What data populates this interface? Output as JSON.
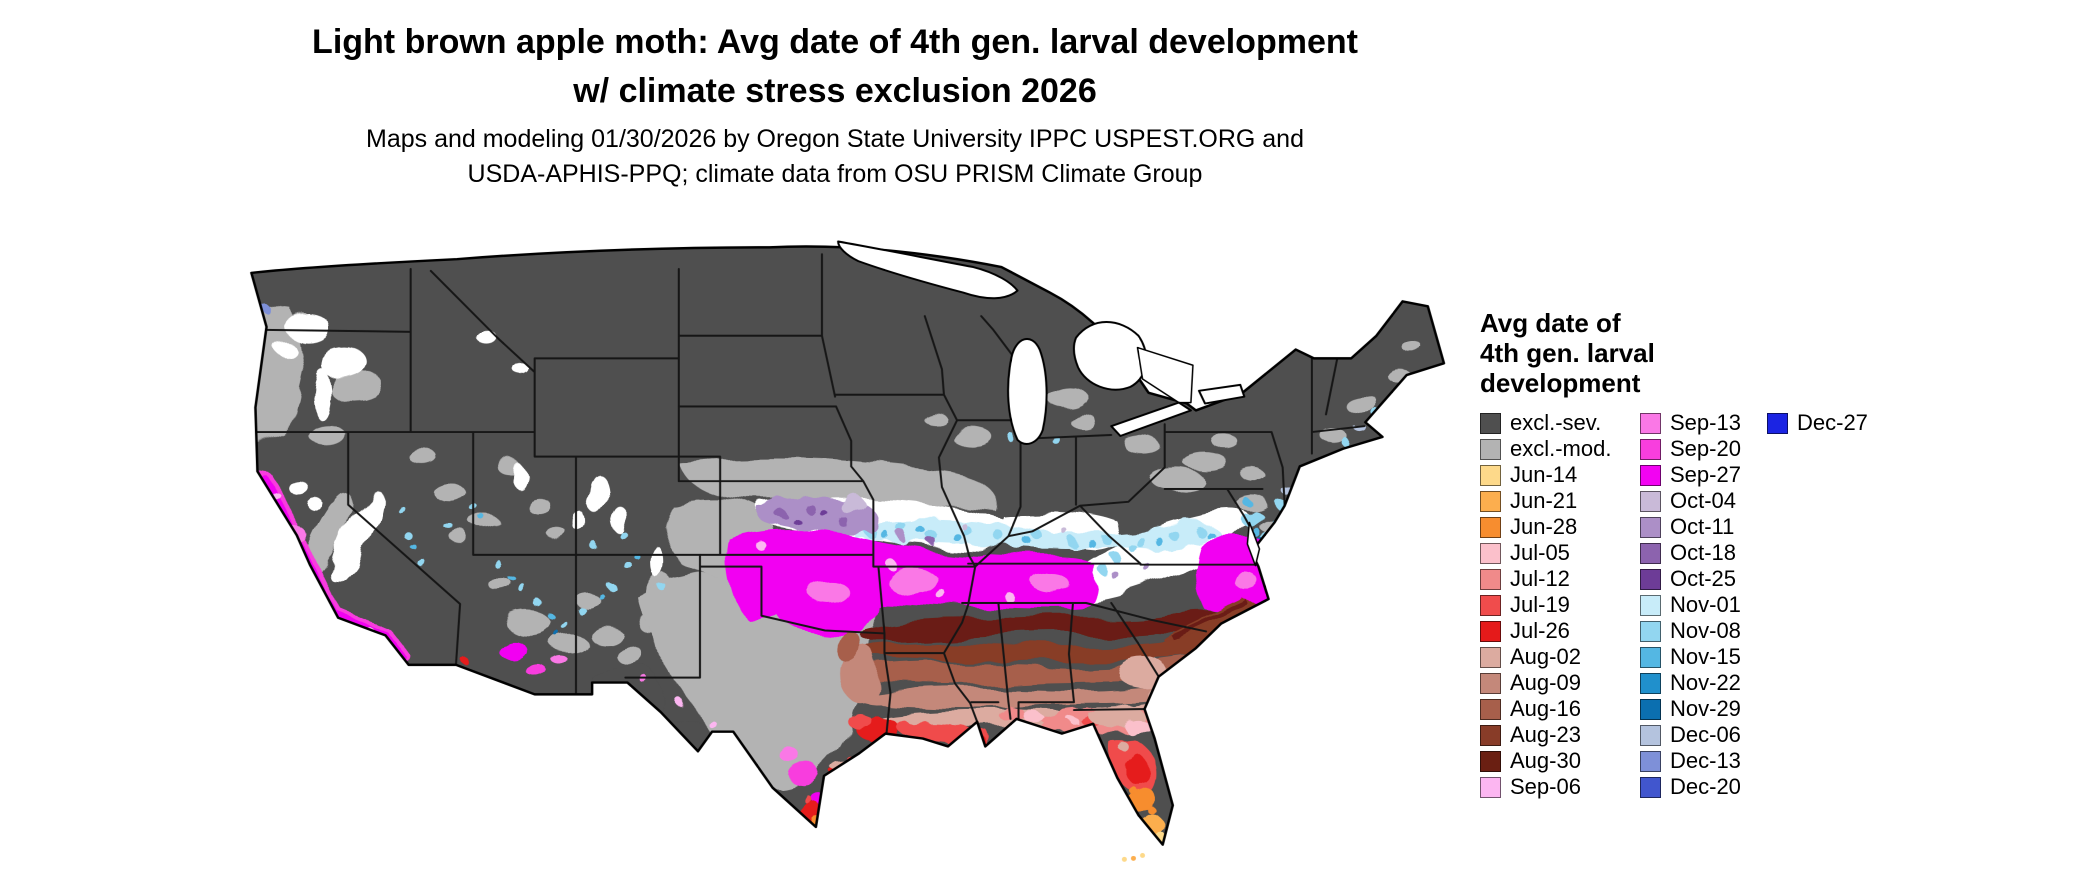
{
  "title": {
    "line1": "Light brown apple moth: Avg date of 4th gen. larval development",
    "line2": "w/ climate stress exclusion 2026"
  },
  "subtitle": {
    "line1": "Maps and modeling 01/30/2026 by Oregon State University IPPC USPEST.ORG and",
    "line2": "USDA-APHIS-PPQ; climate data from OSU PRISM Climate Group"
  },
  "legend": {
    "title": "Avg date of\n4th gen. larval\ndevelopment",
    "column1": [
      {
        "label": "excl.-sev.",
        "color": "#4f4f4f"
      },
      {
        "label": "excl.-mod.",
        "color": "#b3b3b3"
      },
      {
        "label": "Jun-14",
        "color": "#fdd98a"
      },
      {
        "label": "Jun-21",
        "color": "#fcae4e"
      },
      {
        "label": "Jun-28",
        "color": "#f78d2f"
      },
      {
        "label": "Jul-05",
        "color": "#fbc0cb"
      },
      {
        "label": "Jul-12",
        "color": "#f08a8a"
      },
      {
        "label": "Jul-19",
        "color": "#f04c4c"
      },
      {
        "label": "Jul-26",
        "color": "#e51a1a"
      },
      {
        "label": "Aug-02",
        "color": "#dcaba0"
      },
      {
        "label": "Aug-09",
        "color": "#c4887a"
      },
      {
        "label": "Aug-16",
        "color": "#a75f4b"
      },
      {
        "label": "Aug-23",
        "color": "#883c28"
      },
      {
        "label": "Aug-30",
        "color": "#6a1f12"
      },
      {
        "label": "Sep-06",
        "color": "#fcb6f1"
      }
    ],
    "column2": [
      {
        "label": "Sep-13",
        "color": "#fa78e6"
      },
      {
        "label": "Sep-20",
        "color": "#f83ede"
      },
      {
        "label": "Sep-27",
        "color": "#f203f2"
      },
      {
        "label": "Oct-04",
        "color": "#c9bad8"
      },
      {
        "label": "Oct-11",
        "color": "#ac8fc7"
      },
      {
        "label": "Oct-18",
        "color": "#8c63ae"
      },
      {
        "label": "Oct-25",
        "color": "#6d3c97"
      },
      {
        "label": "Nov-01",
        "color": "#c8ecf9"
      },
      {
        "label": "Nov-08",
        "color": "#92d6f0"
      },
      {
        "label": "Nov-15",
        "color": "#54b7e3"
      },
      {
        "label": "Nov-22",
        "color": "#2090cc"
      },
      {
        "label": "Nov-29",
        "color": "#0b6fb0"
      },
      {
        "label": "Dec-06",
        "color": "#b4c3de"
      },
      {
        "label": "Dec-13",
        "color": "#7e90d8"
      },
      {
        "label": "Dec-20",
        "color": "#4156ce"
      }
    ],
    "column3": [
      {
        "label": "Dec-27",
        "color": "#1b24e3"
      }
    ]
  },
  "map": {
    "palette": {
      "excl_sev": "#4f4f4f",
      "excl_mod": "#b3b3b3",
      "masked": "#ffffff",
      "jun14": "#fdd98a",
      "jun21": "#fcae4e",
      "jun28": "#f78d2f",
      "jul05": "#fbc0cb",
      "jul12": "#f08a8a",
      "jul19": "#f04c4c",
      "jul26": "#e51a1a",
      "aug02": "#dcaba0",
      "aug09": "#c4887a",
      "aug16": "#a75f4b",
      "aug23": "#883c28",
      "aug30": "#6a1f12",
      "sep06": "#fcb6f1",
      "sep13": "#fa78e6",
      "sep20": "#f83ede",
      "sep27": "#f203f2",
      "oct04": "#c9bad8",
      "oct11": "#ac8fc7",
      "oct18": "#8c63ae",
      "oct25": "#6d3c97",
      "nov01": "#c8ecf9",
      "nov08": "#92d6f0",
      "nov15": "#54b7e3",
      "nov22": "#2090cc",
      "nov29": "#0b6fb0",
      "dec06": "#b4c3de",
      "dec13": "#7e90d8",
      "dec20": "#4156ce",
      "dec27": "#1b24e3"
    }
  }
}
